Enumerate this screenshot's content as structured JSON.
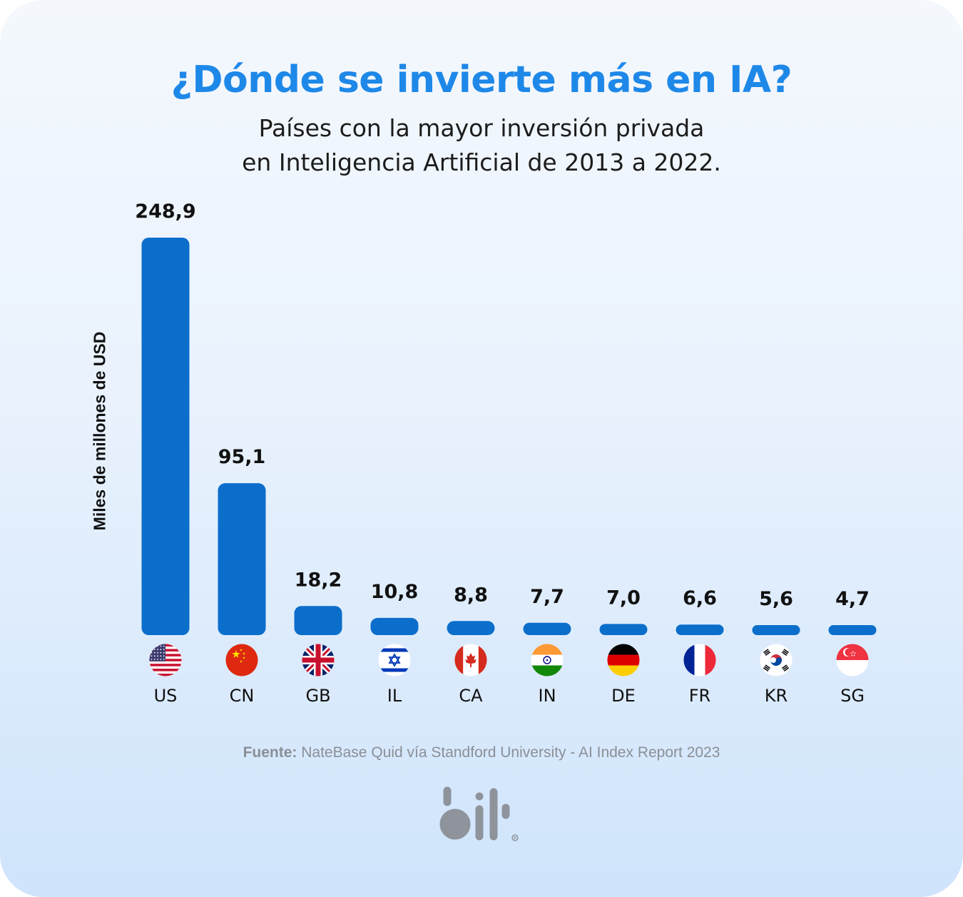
{
  "title": "¿Dónde se invierte más en IA?",
  "subtitle_line1": "Países con la mayor inversión privada",
  "subtitle_line2": "en Inteligencia Artificial de 2013 a 2022.",
  "source_label": "Fuente:",
  "source_text": " NateBase Quid vía Standford University - AI Index Report 2023",
  "logo_text": "bit",
  "colors": {
    "bar": "#0b6ecb",
    "title": "#1e88e8",
    "logo": "#8e939c"
  },
  "chart_data": {
    "type": "bar",
    "title": "¿Dónde se invierte más en IA?",
    "ylabel": "Miles de millones de USD",
    "xlabel": "",
    "ylim": [
      0,
      248.9
    ],
    "grid": false,
    "categories": [
      "US",
      "CN",
      "GB",
      "IL",
      "CA",
      "IN",
      "DE",
      "FR",
      "KR",
      "SG"
    ],
    "values": [
      248.9,
      95.1,
      18.2,
      10.8,
      8.8,
      7.7,
      7.0,
      6.6,
      5.6,
      4.7
    ],
    "value_labels": [
      "248,9",
      "95,1",
      "18,2",
      "10,8",
      "8,8",
      "7,7",
      "7,0",
      "6,6",
      "5,6",
      "4,7"
    ],
    "flag_icons": [
      "us-flag-icon",
      "cn-flag-icon",
      "gb-flag-icon",
      "il-flag-icon",
      "ca-flag-icon",
      "in-flag-icon",
      "de-flag-icon",
      "fr-flag-icon",
      "kr-flag-icon",
      "sg-flag-icon"
    ]
  }
}
